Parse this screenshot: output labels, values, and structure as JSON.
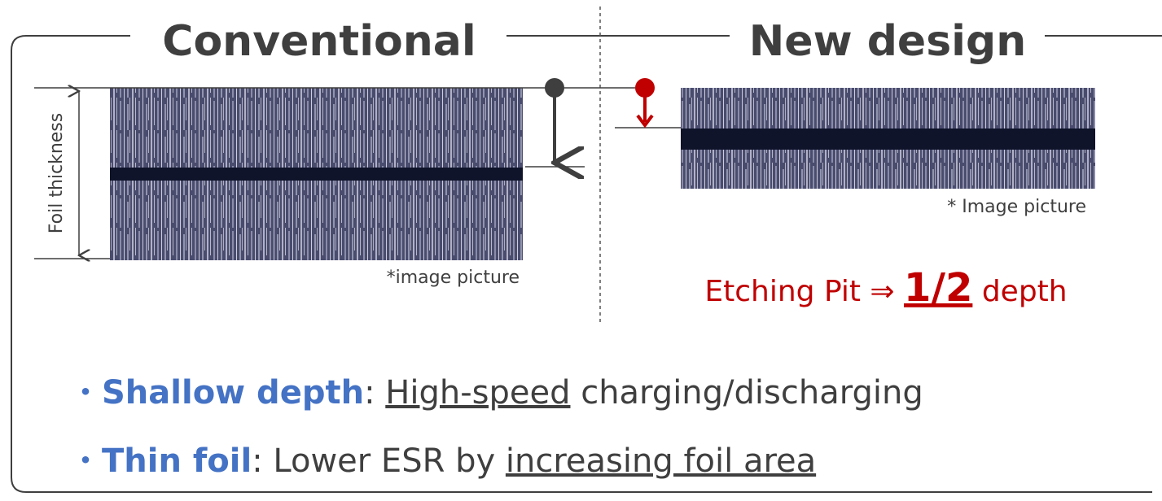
{
  "headings": {
    "left": "Conventional",
    "right": "New design"
  },
  "left_panel": {
    "axis_label": "Foil thickness",
    "caption": "*image picture"
  },
  "right_panel": {
    "caption": "* Image picture",
    "result": {
      "prefix": "Etching Pit ⇒",
      "ratio": "1/2",
      "suffix": "depth"
    }
  },
  "bullets": [
    {
      "mark": "・",
      "term": "Shallow depth",
      "sep": ":",
      "plain_before": "",
      "underlined": "High-speed",
      "plain_after": "charging/discharging"
    },
    {
      "mark": "・",
      "term": "Thin foil",
      "sep": ":",
      "plain_before": "Lower ESR by",
      "underlined": "increasing foil area",
      "plain_after": ""
    }
  ]
}
